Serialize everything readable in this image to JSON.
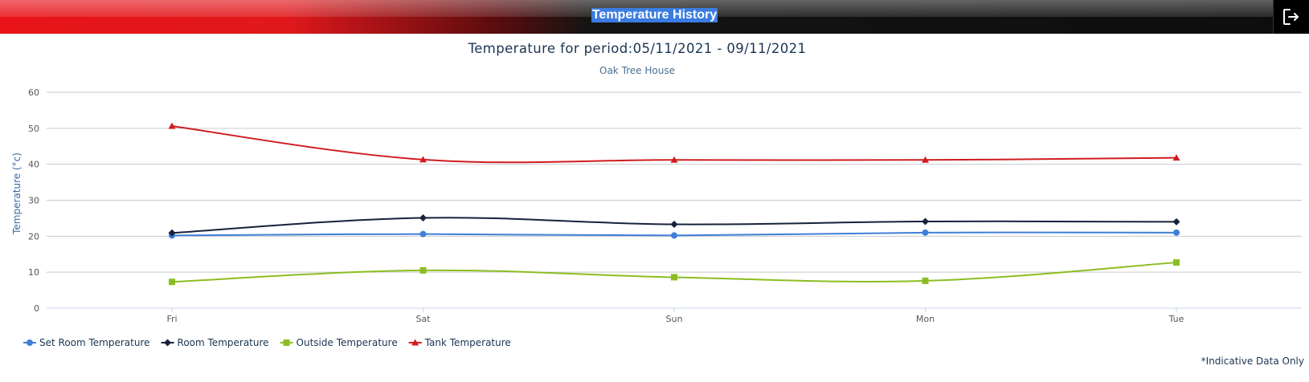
{
  "header": {
    "title": "Temperature History",
    "exit_icon": "logout-icon"
  },
  "chart_data": {
    "type": "line",
    "title": "Temperature for period:05/11/2021 - 09/11/2021",
    "subtitle": "Oak Tree House",
    "xlabel": "",
    "ylabel": "Temperature (°c)",
    "categories": [
      "Fri",
      "Sat",
      "Sun",
      "Mon",
      "Tue"
    ],
    "ylim": [
      0,
      60
    ],
    "yticks": [
      0,
      10,
      20,
      30,
      40,
      50,
      60
    ],
    "grid": true,
    "legend_position": "bottom-left",
    "series": [
      {
        "name": "Set Room Temperature",
        "values": [
          20.2,
          20.6,
          20.2,
          21.0,
          21.0
        ],
        "color": "#3f7fd9",
        "marker": "circle"
      },
      {
        "name": "Room Temperature",
        "values": [
          20.9,
          25.1,
          23.3,
          24.1,
          24.0
        ],
        "color": "#16223a",
        "marker": "diamond"
      },
      {
        "name": "Outside Temperature",
        "values": [
          7.3,
          10.5,
          8.6,
          7.6,
          12.7
        ],
        "color": "#8bbd21",
        "marker": "square"
      },
      {
        "name": "Tank Temperature",
        "values": [
          50.6,
          41.3,
          41.2,
          41.2,
          41.8
        ],
        "color": "#d01c20",
        "marker": "triangle"
      }
    ]
  },
  "footnote": "*Indicative Data Only"
}
